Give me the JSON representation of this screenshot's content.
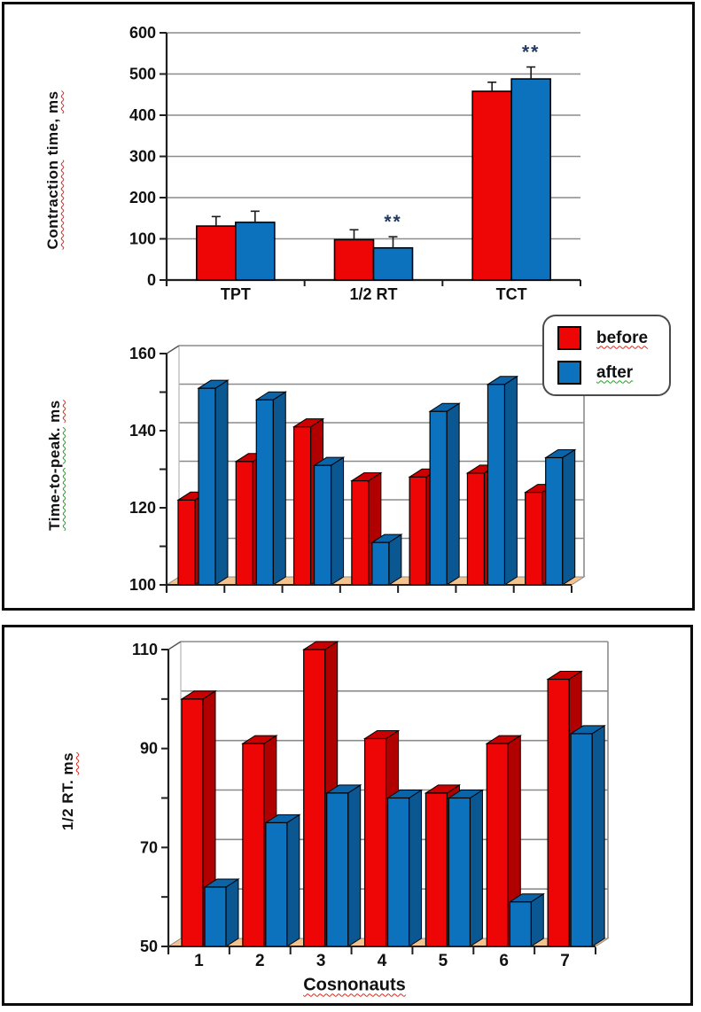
{
  "colors": {
    "before": "#ee0505",
    "after": "#0d72be",
    "before_side": "#b00000",
    "after_side": "#0a5792",
    "before_top": "#cc0000",
    "after_top": "#0c64a8",
    "grid": "#8c8c8c",
    "axis": "#1f1f1f",
    "floor": "#f2c38e",
    "annotation": "#233a5e"
  },
  "legend": {
    "items": [
      {
        "label": "before",
        "series": "before",
        "underline": "red"
      },
      {
        "label": "after",
        "series": "after",
        "underline": "green"
      }
    ]
  },
  "chart_data": [
    {
      "id": "contraction-time",
      "type": "bar",
      "style": "2d",
      "ylabel": "Contraction time, ms",
      "ylabel_segments": [
        {
          "text": "Contraction",
          "underline": "red"
        },
        {
          "text": " time, ",
          "underline": "none"
        },
        {
          "text": "ms",
          "underline": "red"
        }
      ],
      "categories": [
        "TPT",
        "1/2 RT",
        "TCT"
      ],
      "ylim": [
        0,
        600
      ],
      "yticks": [
        0,
        100,
        200,
        300,
        400,
        500,
        600
      ],
      "grid": true,
      "series": [
        {
          "name": "before",
          "values": [
            131,
            98,
            458
          ],
          "errors": [
            23,
            24,
            22
          ]
        },
        {
          "name": "after",
          "values": [
            140,
            78,
            488
          ],
          "errors": [
            27,
            27,
            29
          ]
        }
      ],
      "annotations": [
        {
          "text": "**",
          "category_index": 1,
          "series_index": 1
        },
        {
          "text": "**",
          "category_index": 2,
          "series_index": 1
        }
      ]
    },
    {
      "id": "time-to-peak",
      "type": "bar",
      "style": "3d",
      "ylabel": "Time-to-peak. ms",
      "ylabel_segments": [
        {
          "text": "Time-to-peak.",
          "underline": "green"
        },
        {
          "text": " ",
          "underline": "none"
        },
        {
          "text": "ms",
          "underline": "red"
        }
      ],
      "categories": [
        "1",
        "2",
        "3",
        "4",
        "5",
        "6",
        "7"
      ],
      "show_category_labels": false,
      "ylim": [
        100,
        160
      ],
      "ytick_label_step": 20,
      "grid_step": 10,
      "yticks_labeled": [
        100,
        120,
        140,
        160
      ],
      "grid": true,
      "series": [
        {
          "name": "before",
          "values": [
            122,
            132,
            141,
            127,
            128,
            129,
            124
          ]
        },
        {
          "name": "after",
          "values": [
            151,
            148,
            131,
            111,
            145,
            152,
            133
          ]
        }
      ]
    },
    {
      "id": "half-relaxation-time",
      "type": "bar",
      "style": "3d",
      "ylabel": "1/2 RT. ms",
      "ylabel_segments": [
        {
          "text": "1/2 RT.",
          "underline": "none"
        },
        {
          "text": " ",
          "underline": "none"
        },
        {
          "text": "ms",
          "underline": "red"
        }
      ],
      "xlabel": "Cosnonauts",
      "xlabel_underline": "red",
      "categories": [
        "1",
        "2",
        "3",
        "4",
        "5",
        "6",
        "7"
      ],
      "show_category_labels": true,
      "ylim": [
        50,
        110
      ],
      "ytick_label_step": 20,
      "grid_step": 10,
      "yticks_labeled": [
        50,
        70,
        90,
        110
      ],
      "grid": true,
      "series": [
        {
          "name": "before",
          "values": [
            100,
            91,
            110,
            92,
            81,
            91,
            104
          ]
        },
        {
          "name": "after",
          "values": [
            62,
            75,
            81,
            80,
            80,
            59,
            93
          ]
        }
      ]
    }
  ]
}
